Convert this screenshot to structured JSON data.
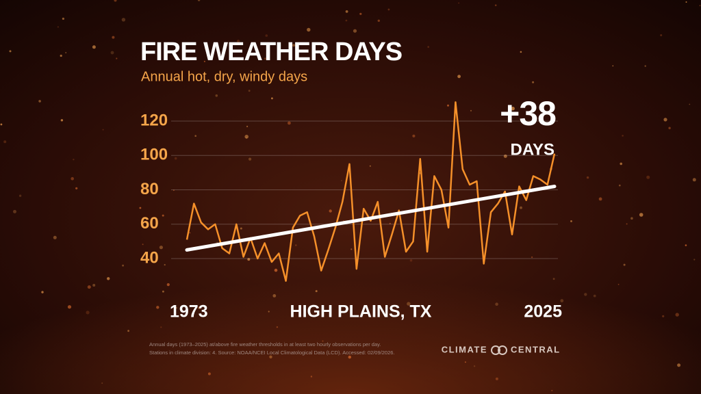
{
  "chart_data": {
    "type": "line",
    "title": "FIRE WEATHER DAYS",
    "subtitle": "Annual hot, dry, windy days",
    "x": [
      1973,
      1974,
      1975,
      1976,
      1977,
      1978,
      1979,
      1980,
      1981,
      1982,
      1983,
      1984,
      1985,
      1986,
      1987,
      1988,
      1989,
      1990,
      1991,
      1992,
      1993,
      1994,
      1995,
      1996,
      1997,
      1998,
      1999,
      2000,
      2001,
      2002,
      2003,
      2004,
      2005,
      2006,
      2007,
      2008,
      2009,
      2010,
      2011,
      2012,
      2013,
      2014,
      2015,
      2016,
      2017,
      2018,
      2019,
      2020,
      2021,
      2022,
      2023,
      2024,
      2025
    ],
    "series": [
      {
        "name": "Fire weather days",
        "color": "#f5902a",
        "values": [
          51,
          72,
          61,
          57,
          60,
          46,
          43,
          60,
          41,
          52,
          40,
          49,
          38,
          43,
          27,
          58,
          65,
          67,
          53,
          33,
          45,
          58,
          73,
          95,
          34,
          69,
          62,
          73,
          41,
          54,
          68,
          44,
          50,
          98,
          44,
          88,
          80,
          58,
          131,
          92,
          83,
          85,
          37,
          67,
          72,
          79,
          54,
          82,
          74,
          88,
          86,
          83,
          101
        ]
      }
    ],
    "trend": {
      "x": [
        1973,
        2025
      ],
      "values": [
        45,
        82
      ],
      "color": "#ffffff"
    },
    "xlim": [
      1973,
      2025
    ],
    "xticks": [
      1973,
      2025
    ],
    "ylim": [
      25,
      135
    ],
    "yticks": [
      40,
      60,
      80,
      100,
      120
    ],
    "grid": true,
    "change_label": "+38",
    "change_unit": "DAYS",
    "location": "HIGH PLAINS, TX",
    "footnote": [
      "Annual days (1973–2025) at/above fire weather thresholds in at least two hourly observations per day.",
      "Stations in climate division: 4. Source: NOAA/NCEI Local Climatological Data (LCD). Accessed: 02/09/2026."
    ],
    "logo": [
      "CLIMATE",
      "CENTRAL"
    ]
  }
}
